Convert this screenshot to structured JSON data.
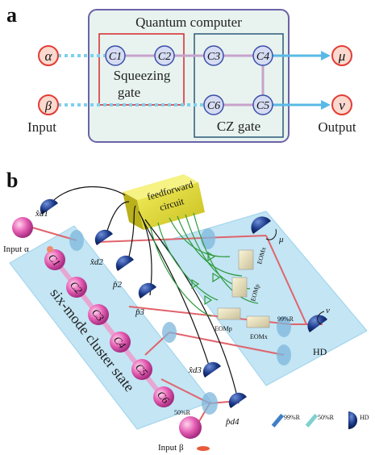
{
  "panel_a": {
    "letter": "a",
    "title": "Quantum computer",
    "nodes": {
      "alpha": "α",
      "beta": "β",
      "mu": "μ",
      "nu": "ν",
      "c1": "C1",
      "c2": "C2",
      "c3": "C3",
      "c4": "C4",
      "c5": "C5",
      "c6": "C6"
    },
    "squeezing_line1": "Squeezing",
    "squeezing_line2": "gate",
    "cz_gate": "CZ gate",
    "input": "Input",
    "output": "Output"
  },
  "panel_b": {
    "letter": "b",
    "feedforward_line1": "feedforward",
    "feedforward_line2": "circuit",
    "input_alpha": "Input α",
    "input_beta": "Input β",
    "cluster_label": "six-mode cluster state",
    "nodes": [
      "C1",
      "C2",
      "C3",
      "C4",
      "C5",
      "C6"
    ],
    "detectors": {
      "xd1": "x̂d1",
      "xd2": "x̂d2",
      "pd2": "p̂2",
      "pd3": "p̂3",
      "xd3": "x̂d3",
      "pd4": "p̂d4"
    },
    "out_mu": "μ",
    "out_nu": "ν",
    "hd": "HD",
    "r99": "99%R",
    "r50": "50%R",
    "eomx1": "EOMx",
    "eomx2": "EOMx",
    "eomp1": "EOMp",
    "eomp2": "EOMp",
    "legend": {
      "r99": "99%R",
      "r50": "50%R",
      "hd": "HD"
    }
  }
}
